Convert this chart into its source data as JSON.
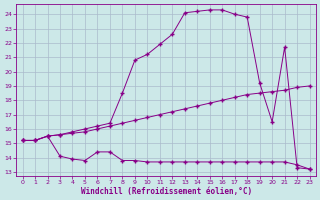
{
  "xlabel": "Windchill (Refroidissement éolien,°C)",
  "bg_color": "#cce8e8",
  "line_color": "#880088",
  "grid_color": "#aabbcc",
  "x_ticks": [
    0,
    1,
    2,
    3,
    4,
    5,
    6,
    7,
    8,
    9,
    10,
    11,
    12,
    13,
    14,
    15,
    16,
    17,
    18,
    19,
    20,
    21,
    22,
    23
  ],
  "y_ticks": [
    13,
    14,
    15,
    16,
    17,
    18,
    19,
    20,
    21,
    22,
    23,
    24
  ],
  "xlim": [
    -0.5,
    23.5
  ],
  "ylim": [
    12.7,
    24.7
  ],
  "curve1_x": [
    0,
    1,
    2,
    3,
    4,
    5,
    6,
    7,
    8,
    9,
    10,
    11,
    12,
    13,
    14,
    15,
    16,
    17,
    18,
    19,
    20,
    21,
    22,
    23
  ],
  "curve1_y": [
    15.2,
    15.2,
    15.5,
    14.1,
    13.9,
    13.8,
    14.4,
    14.4,
    13.8,
    13.8,
    13.7,
    13.7,
    13.7,
    13.7,
    13.7,
    13.7,
    13.7,
    13.7,
    13.7,
    13.7,
    13.7,
    13.7,
    13.5,
    13.2
  ],
  "curve2_x": [
    0,
    1,
    2,
    3,
    4,
    5,
    6,
    7,
    8,
    9,
    10,
    11,
    12,
    13,
    14,
    15,
    16,
    17,
    18,
    19,
    20,
    21,
    22,
    23
  ],
  "curve2_y": [
    15.2,
    15.2,
    15.5,
    15.6,
    15.7,
    15.8,
    16.0,
    16.2,
    16.4,
    16.6,
    16.8,
    17.0,
    17.2,
    17.4,
    17.6,
    17.8,
    18.0,
    18.2,
    18.4,
    18.5,
    18.6,
    18.7,
    18.9,
    19.0
  ],
  "curve3_x": [
    0,
    1,
    2,
    3,
    4,
    5,
    6,
    7,
    8,
    9,
    10,
    11,
    12,
    13,
    14,
    15,
    16,
    17,
    18,
    19,
    20,
    21,
    22,
    23
  ],
  "curve3_y": [
    15.2,
    15.2,
    15.5,
    15.6,
    15.8,
    16.0,
    16.2,
    16.4,
    18.5,
    20.8,
    21.2,
    21.9,
    22.6,
    24.1,
    24.2,
    24.3,
    24.3,
    24.0,
    23.8,
    19.2,
    16.5,
    21.7,
    13.3,
    13.2
  ]
}
